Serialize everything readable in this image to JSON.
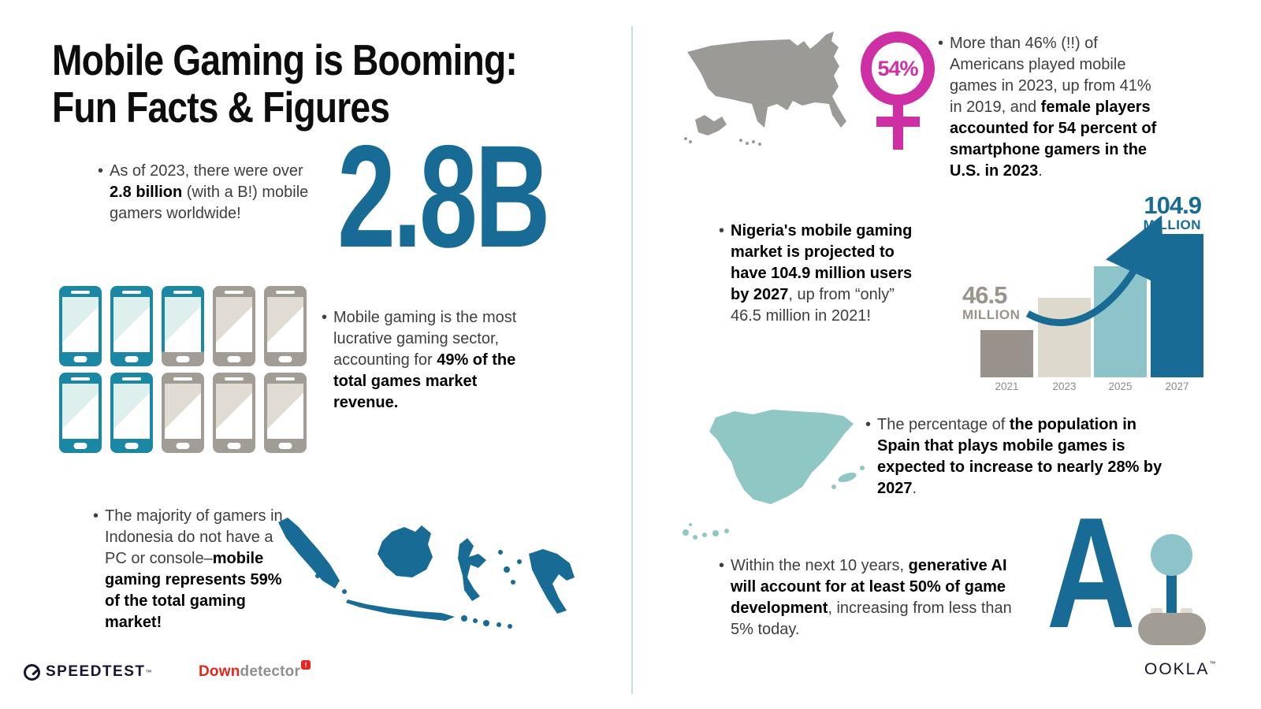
{
  "colors": {
    "teal_dark": "#176b94",
    "phone_teal": "#1a87a4",
    "screen_teal": "#def0ee",
    "warm_gray": "#a19c94",
    "screen_gray": "#e0dcd3",
    "spain_teal": "#8ec7c4",
    "us_gray": "#9b9a97",
    "pink": "#cf2fa5",
    "text_gray": "#3e3e3e",
    "heading_black": "#0d0d0d",
    "divider_blue": "#c7dee1",
    "navy": "#15152e",
    "red": "#e6251d",
    "logo_gray": "#8f8f8f",
    "label_gray": "#9a948b",
    "year_gray": "#8b8b89",
    "bar_light_teal": "#8cc4ca"
  },
  "title": {
    "line1": "Mobile Gaming is Booming:",
    "line2": "Fun Facts & Figures"
  },
  "big_stat": "2.8B",
  "bullet": "•",
  "facts": {
    "gamers": {
      "r1": "As of 2023, there were over ",
      "b1": "2.8 billion",
      "r2": " (with a B!) mobile gamers worldwide!"
    },
    "lucrative": {
      "r1": "Mobile gaming is the most lucrative gaming sector, accounting for ",
      "b1": "49% of the total games market revenue."
    },
    "indonesia": {
      "r1": "The majority of gamers in Indonesia do not have a PC or console–",
      "b1": "mobile gaming represents 59% of the total gaming market!"
    },
    "us": {
      "r1": "More than 46% (!!) of Americans played mobile games in 2023, up from 41% in 2019, and ",
      "b1": "female players accounted for 54 percent of smartphone gamers in the U.S. in 2023",
      "r2": "."
    },
    "nigeria": {
      "b1": "Nigeria's mobile gaming market is projected to have 104.9 million users by 2027",
      "r1": ", up from “only” 46.5 million in 2021!"
    },
    "spain": {
      "r1": "The percentage of ",
      "b1": "the population in Spain that plays mobile games is expected to increase to nearly 28% by 2027",
      "r2": "."
    },
    "ai": {
      "r1": "Within the next 10 years, ",
      "b1": "generative AI will account for at least 50% of game development",
      "r2": ", increasing from less than 5% today."
    }
  },
  "badge": {
    "value": "54%"
  },
  "phones": {
    "fills": [
      1,
      1,
      0.9,
      0,
      0,
      1,
      1,
      0,
      0,
      0
    ],
    "represents": "49% of games market revenue"
  },
  "chart_data": {
    "type": "bar",
    "categories": [
      "2021",
      "2023",
      "2025",
      "2027"
    ],
    "values": [
      46.5,
      66,
      85,
      104.9
    ],
    "unit": "million users",
    "bar_colors": [
      "#99928a",
      "#ddd9cd",
      "#8cc4ca",
      "#176b94"
    ],
    "ylim": [
      0,
      110
    ],
    "annotations": {
      "start_value": "46.5",
      "start_unit": "MILLION",
      "end_value": "104.9",
      "end_unit": "MILLION"
    }
  },
  "footer": {
    "speedtest": "SPEEDTEST",
    "speedtest_tm": "™",
    "down_red": "Down",
    "down_gray": "detector",
    "down_badge": "!",
    "ookla": "OOKLA",
    "ookla_tm": "™"
  }
}
